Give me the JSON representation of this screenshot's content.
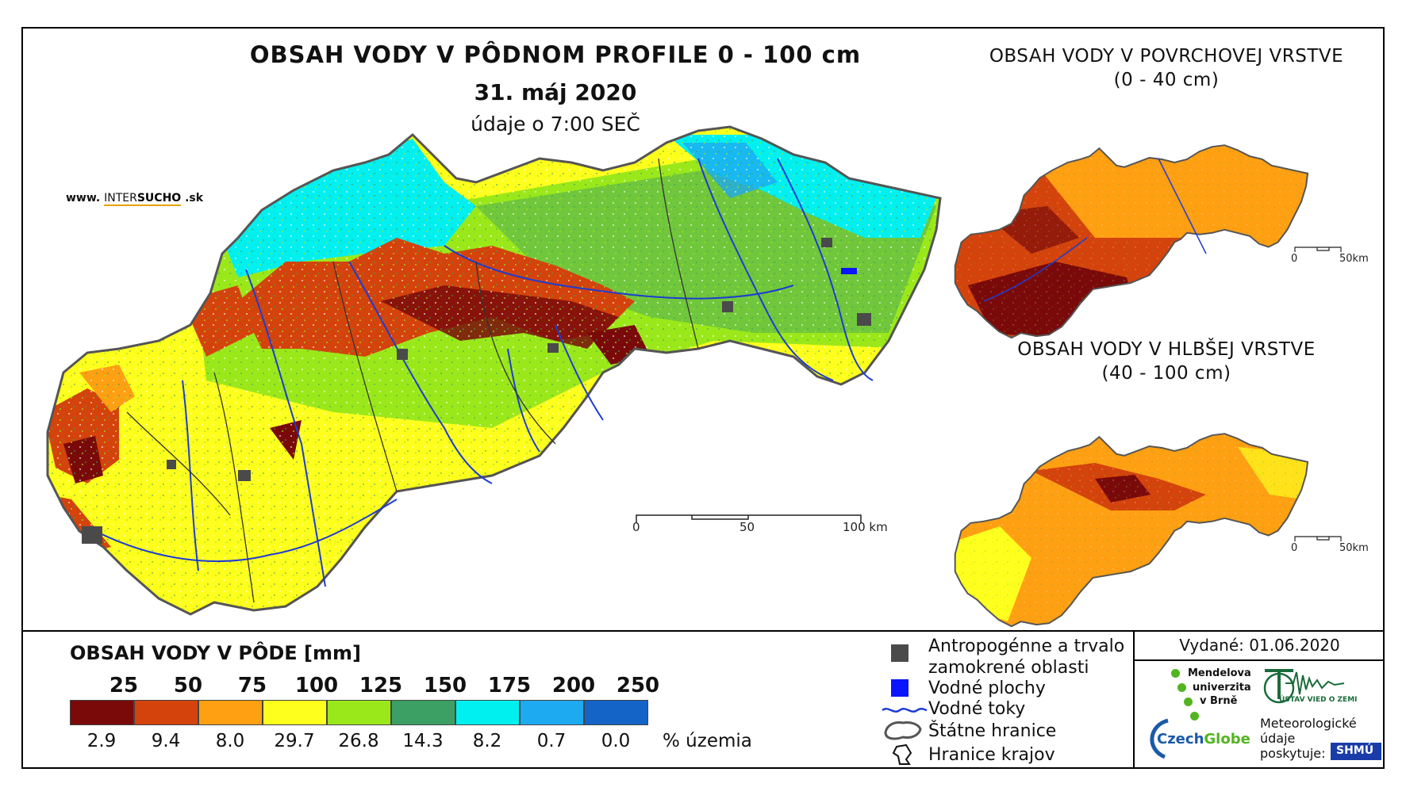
{
  "header": {
    "title": "OBSAH VODY V PÔDNOM PROFILE 0 - 100 cm",
    "date": "31. máj 2020",
    "time": "údaje o 7:00 SEČ"
  },
  "website": {
    "prefix": "www.",
    "brand_a": "INTER",
    "brand_b": "SUCHO",
    "suffix": ".sk"
  },
  "insets": {
    "surface": {
      "title": "OBSAH VODY V POVRCHOVEJ VRSTVE",
      "subtitle": "(0 - 40 cm)",
      "scale_start": "0",
      "scale_end": "50km"
    },
    "deep": {
      "title": "OBSAH VODY V HLBŠEJ VRSTVE",
      "subtitle": "(40 - 100 cm)",
      "scale_start": "0",
      "scale_end": "50km"
    }
  },
  "scalebar": {
    "labels": [
      "0",
      "50",
      "100 km"
    ]
  },
  "legend": {
    "title": "OBSAH VODY V PÔDE [mm]",
    "unit_label": "% územia",
    "class_breaks": [
      "25",
      "50",
      "75",
      "100",
      "125",
      "150",
      "175",
      "200",
      "250"
    ],
    "classes": [
      {
        "color": "#7a0a0a",
        "percent": "2.9"
      },
      {
        "color": "#d4430c",
        "percent": "9.4"
      },
      {
        "color": "#ff9f12",
        "percent": "8.0"
      },
      {
        "color": "#ffff1e",
        "percent": "29.7"
      },
      {
        "color": "#9be81a",
        "percent": "26.8"
      },
      {
        "color": "#3ca064",
        "percent": "14.3"
      },
      {
        "color": "#00f0f0",
        "percent": "8.2"
      },
      {
        "color": "#1eaaf0",
        "percent": "0.7"
      },
      {
        "color": "#1464c8",
        "percent": "0.0"
      }
    ]
  },
  "symbols": {
    "anthropogenic_1": "Antropogénne a trvalo",
    "anthropogenic_2": "zamokrené oblasti",
    "water_bodies": "Vodné plochy",
    "rivers": "Vodné toky",
    "state_border": "Štátne hranice",
    "region_border": "Hranice krajov"
  },
  "issued": "Vydané: 01.06.2020",
  "logos": {
    "mendel_1": "Mendelova",
    "mendel_2": "univerzita",
    "mendel_3": "v Brně",
    "ustav": "ÚSTAV VIED O ZEMI",
    "czechglobe_a": "Czech",
    "czechglobe_b": "Globe",
    "meteo_1": "Meteorologické",
    "meteo_2": "údaje",
    "meteo_3": "poskytuje:",
    "shmu": "SHMÚ"
  },
  "colors": {
    "river": "#1e3cd2",
    "border": "#333333",
    "urban": "#4a4a4a",
    "water": "#0a14ff"
  }
}
